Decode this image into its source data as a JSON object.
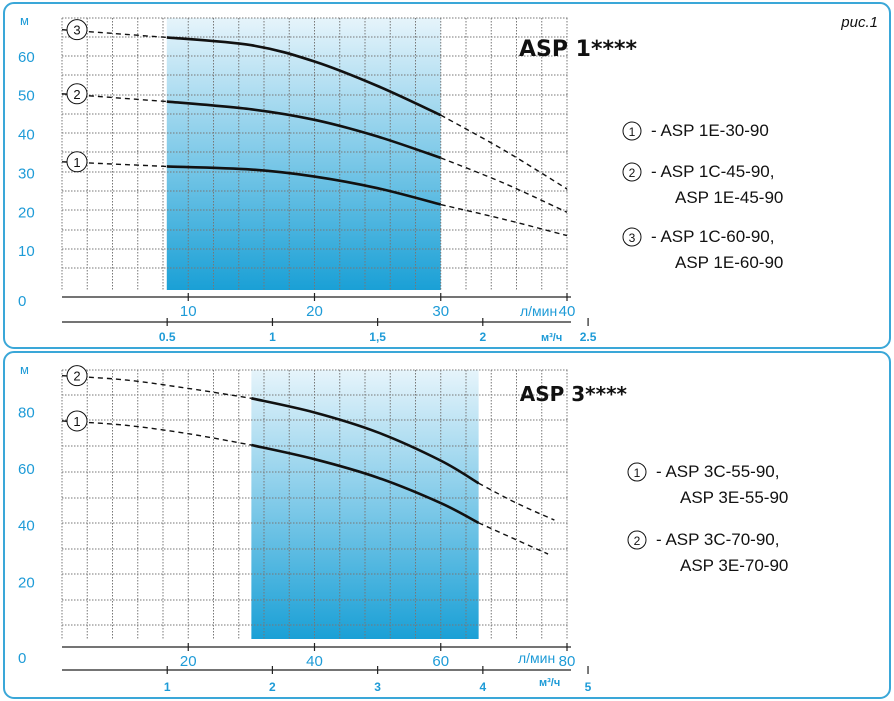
{
  "figure_label": "рис.1",
  "colors": {
    "frame": "#3aa7d8",
    "axis_text": "#1e9bd7",
    "curve": "#111111",
    "region_top": "#e6f4fb",
    "region_bottom": "#1aa0d6"
  },
  "chart_data": [
    {
      "type": "line",
      "title": "ASP 1****",
      "ylabel": "м",
      "xlabel": "л/мин",
      "x2label": "м³/ч",
      "xlim": [
        0,
        40
      ],
      "ylim": [
        0,
        70
      ],
      "y_ticks": [
        "0",
        "10",
        "20",
        "30",
        "40",
        "50",
        "60"
      ],
      "x_ticks": [
        "10",
        "20",
        "30",
        "40"
      ],
      "x2_ticks": [
        {
          "label": "0.5",
          "at": 8.33
        },
        {
          "label": "1",
          "at": 16.67
        },
        {
          "label": "1,5",
          "at": 25
        },
        {
          "label": "2",
          "at": 33.33
        },
        {
          "label": "2.5",
          "at": 41.67
        }
      ],
      "grid": true,
      "operating_range": [
        8.3,
        30
      ],
      "series": [
        {
          "name": "1",
          "solid": [
            [
              8.3,
              31.8
            ],
            [
              15,
              31
            ],
            [
              20,
              29.2
            ],
            [
              25,
              26.2
            ],
            [
              30,
              22
            ]
          ],
          "dashed_left": [
            [
              0,
              33
            ],
            [
              8.3,
              31.8
            ]
          ],
          "dashed_right": [
            [
              30,
              22
            ],
            [
              35,
              18.2
            ],
            [
              40,
              14
            ]
          ]
        },
        {
          "name": "2",
          "solid": [
            [
              8.3,
              48.5
            ],
            [
              15,
              46.5
            ],
            [
              20,
              43.8
            ],
            [
              25,
              39.5
            ],
            [
              30,
              34
            ]
          ],
          "dashed_left": [
            [
              0,
              50.5
            ],
            [
              8.3,
              48.5
            ]
          ],
          "dashed_right": [
            [
              30,
              34
            ],
            [
              35,
              27.5
            ],
            [
              40,
              20
            ]
          ]
        },
        {
          "name": "3",
          "solid": [
            [
              8.3,
              65
            ],
            [
              15,
              63
            ],
            [
              20,
              58.8
            ],
            [
              25,
              52.5
            ],
            [
              30,
              45
            ]
          ],
          "dashed_left": [
            [
              0,
              67
            ],
            [
              8.3,
              65
            ]
          ],
          "dashed_right": [
            [
              30,
              45
            ],
            [
              35,
              36
            ],
            [
              40,
              26
            ]
          ]
        }
      ],
      "legend": [
        {
          "num": "1",
          "lines": [
            "- ASP 1E-30-90"
          ]
        },
        {
          "num": "2",
          "lines": [
            "- ASP 1C-45-90,",
            "ASP 1E-45-90"
          ]
        },
        {
          "num": "3",
          "lines": [
            "- ASP 1C-60-90,",
            "ASP 1E-60-90"
          ]
        }
      ]
    },
    {
      "type": "line",
      "title": "ASP 3****",
      "ylabel": "м",
      "xlabel": "л/мин",
      "x2label": "м³/ч",
      "xlim": [
        0,
        80
      ],
      "ylim": [
        0,
        95
      ],
      "y_ticks": [
        "0",
        "20",
        "40",
        "60",
        "80"
      ],
      "x_ticks": [
        "20",
        "40",
        "60",
        "80"
      ],
      "x2_ticks": [
        {
          "label": "1",
          "at": 16.67
        },
        {
          "label": "2",
          "at": 33.33
        },
        {
          "label": "3",
          "at": 50
        },
        {
          "label": "4",
          "at": 66.67
        },
        {
          "label": "5",
          "at": 83.33
        }
      ],
      "grid": true,
      "operating_range": [
        30,
        66
      ],
      "series": [
        {
          "name": "1",
          "solid": [
            [
              30,
              68.5
            ],
            [
              40,
              63.5
            ],
            [
              50,
              57
            ],
            [
              60,
              48
            ],
            [
              66,
              41
            ]
          ],
          "dashed_left": [
            [
              0,
              77
            ],
            [
              10,
              75.5
            ],
            [
              20,
              72.5
            ],
            [
              30,
              68.5
            ]
          ],
          "dashed_right": [
            [
              66,
              41
            ],
            [
              72,
              35
            ],
            [
              77,
              30
            ]
          ]
        },
        {
          "name": "2",
          "solid": [
            [
              30,
              85
            ],
            [
              40,
              80
            ],
            [
              50,
              73
            ],
            [
              60,
              63
            ],
            [
              66,
              55
            ]
          ],
          "dashed_left": [
            [
              0,
              93
            ],
            [
              10,
              91.5
            ],
            [
              20,
              88.5
            ],
            [
              30,
              85
            ]
          ],
          "dashed_right": [
            [
              66,
              55
            ],
            [
              72,
              48
            ],
            [
              78,
              42
            ]
          ]
        }
      ],
      "legend": [
        {
          "num": "1",
          "lines": [
            "- ASP 3C-55-90,",
            "ASP 3E-55-90"
          ]
        },
        {
          "num": "2",
          "lines": [
            "- ASP 3C-70-90,",
            "ASP 3E-70-90"
          ]
        }
      ]
    }
  ]
}
